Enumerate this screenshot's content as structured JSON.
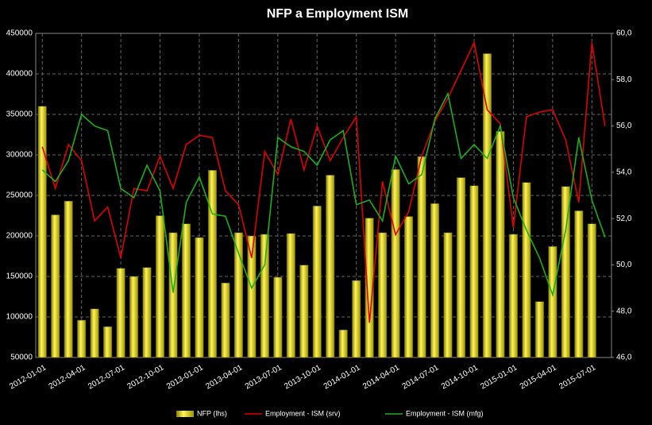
{
  "chart_data": {
    "type": "bar_line",
    "title": "NFP a Employment ISM",
    "categories": [
      "2012-01-01",
      null,
      null,
      "2012-04-01",
      null,
      null,
      "2012-07-01",
      null,
      null,
      "2012-10-01",
      null,
      null,
      "2013-01-01",
      null,
      null,
      "2013-04-01",
      null,
      null,
      "2013-07-01",
      null,
      null,
      "2013-10-01",
      null,
      null,
      "2014-01-01",
      null,
      null,
      "2014-04-01",
      null,
      null,
      "2014-07-01",
      null,
      null,
      "2014-10-01",
      null,
      null,
      "2015-01-01",
      null,
      null,
      "2015-04-01",
      null,
      null,
      "2015-07-01",
      null
    ],
    "series": [
      {
        "name": "NFP (lhs)",
        "color": "#d4c800",
        "type": "bar",
        "values": [
          360000,
          226000,
          243000,
          96000,
          110000,
          88000,
          160000,
          150000,
          161000,
          225000,
          204000,
          215000,
          198000,
          281000,
          142000,
          204000,
          200000,
          202000,
          149000,
          203000,
          164000,
          237000,
          275000,
          84000,
          145000,
          222000,
          204000,
          282000,
          224000,
          298000,
          240000,
          204000,
          272000,
          262000,
          425000,
          329000,
          202000,
          266000,
          119000,
          187000,
          261000,
          231000,
          215000,
          null
        ]
      },
      {
        "name": "Employment - ISM (srv)",
        "color": "#e00000",
        "type": "line",
        "axis": "y2",
        "values": [
          55.1,
          53.3,
          55.2,
          54.5,
          51.9,
          52.5,
          50.3,
          53.3,
          53.2,
          54.7,
          53.3,
          55.2,
          55.6,
          55.5,
          53.2,
          52.6,
          50.3,
          54.9,
          53.9,
          56.3,
          54.1,
          56.0,
          54.5,
          55.5,
          56.4,
          47.5,
          53.6,
          51.3,
          52.3,
          54.7,
          56.2,
          57.2,
          58.4,
          59.6,
          56.7,
          56.1,
          51.6,
          56.4,
          56.6,
          56.7,
          55.4,
          52.7,
          59.6,
          56.0
        ]
      },
      {
        "name": "Employment - ISM (mfg)",
        "color": "#1ab01a",
        "type": "line",
        "axis": "y2",
        "values": [
          54.1,
          53.6,
          54.5,
          56.5,
          56.0,
          55.8,
          53.3,
          52.9,
          54.3,
          53.2,
          48.8,
          52.7,
          53.8,
          52.2,
          52.1,
          50.5,
          49.0,
          50.0,
          55.5,
          55.1,
          54.9,
          54.3,
          55.4,
          55.8,
          52.6,
          52.8,
          51.9,
          54.7,
          53.5,
          53.9,
          56.3,
          57.4,
          54.6,
          55.2,
          54.6,
          56.0,
          52.9,
          51.5,
          50.3,
          48.7,
          51.5,
          55.5,
          52.8,
          51.2
        ]
      }
    ],
    "ylim": [
      50000,
      450000
    ],
    "yticks": [
      50000,
      100000,
      150000,
      200000,
      250000,
      300000,
      350000,
      400000,
      450000
    ],
    "y2lim": [
      46,
      60
    ],
    "y2ticks": [
      {
        "value": 46,
        "label": "46,0"
      },
      {
        "value": 48,
        "label": "48,0"
      },
      {
        "value": 50,
        "label": "50,0"
      },
      {
        "value": 52,
        "label": "52,0"
      },
      {
        "value": 54,
        "label": "54,0"
      },
      {
        "value": 56,
        "label": "56,0"
      },
      {
        "value": 58,
        "label": "58,0"
      },
      {
        "value": 60,
        "label": "60,0"
      }
    ],
    "grid": true,
    "legend": "bottom"
  }
}
